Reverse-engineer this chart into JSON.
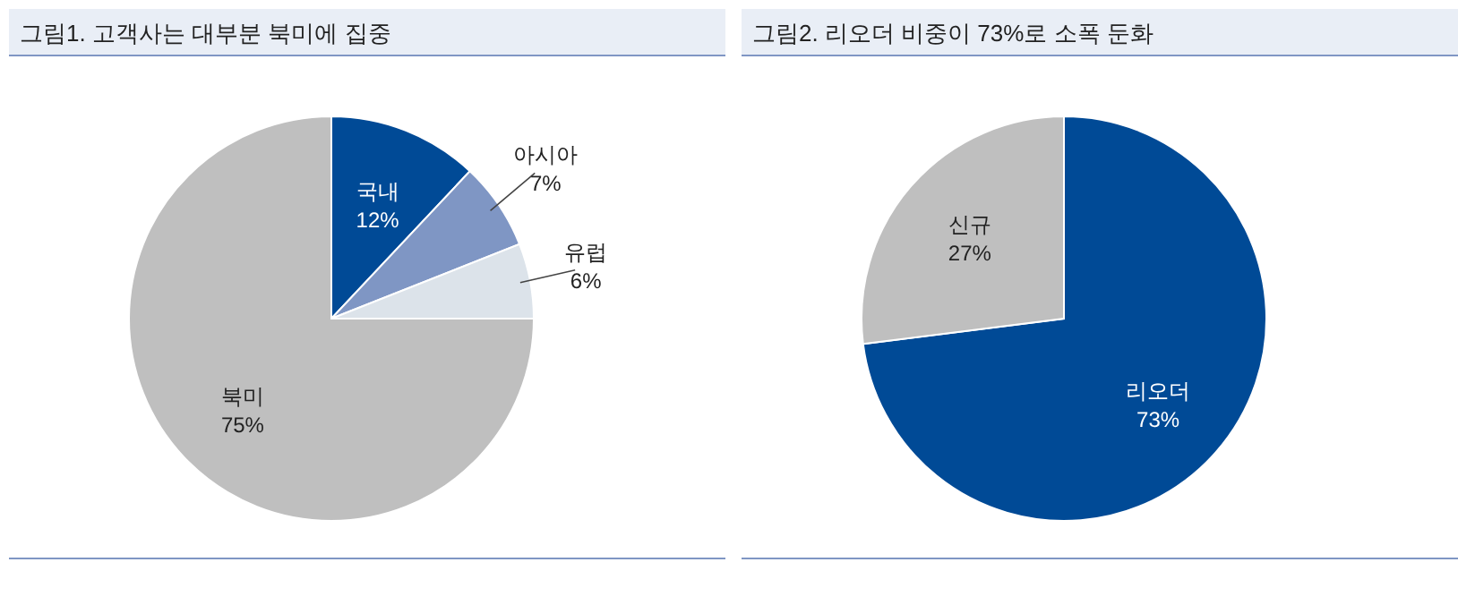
{
  "chart_data": [
    {
      "type": "pie",
      "title": "그림1. 고객사는 대부분 북미에 집중",
      "categories": [
        "국내",
        "아시아",
        "유럽",
        "북미"
      ],
      "values": [
        12,
        7,
        6,
        75
      ],
      "value_labels": [
        "12%",
        "7%",
        "6%",
        "75%"
      ],
      "colors": [
        "#004a96",
        "#7f96c4",
        "#dce3ea",
        "#bfbfbf"
      ]
    },
    {
      "type": "pie",
      "title": "그림2. 리오더 비중이 73%로 소폭 둔화",
      "categories": [
        "리오더",
        "신규"
      ],
      "values": [
        73,
        27
      ],
      "value_labels": [
        "73%",
        "27%"
      ],
      "colors": [
        "#004a96",
        "#bfbfbf"
      ]
    }
  ]
}
